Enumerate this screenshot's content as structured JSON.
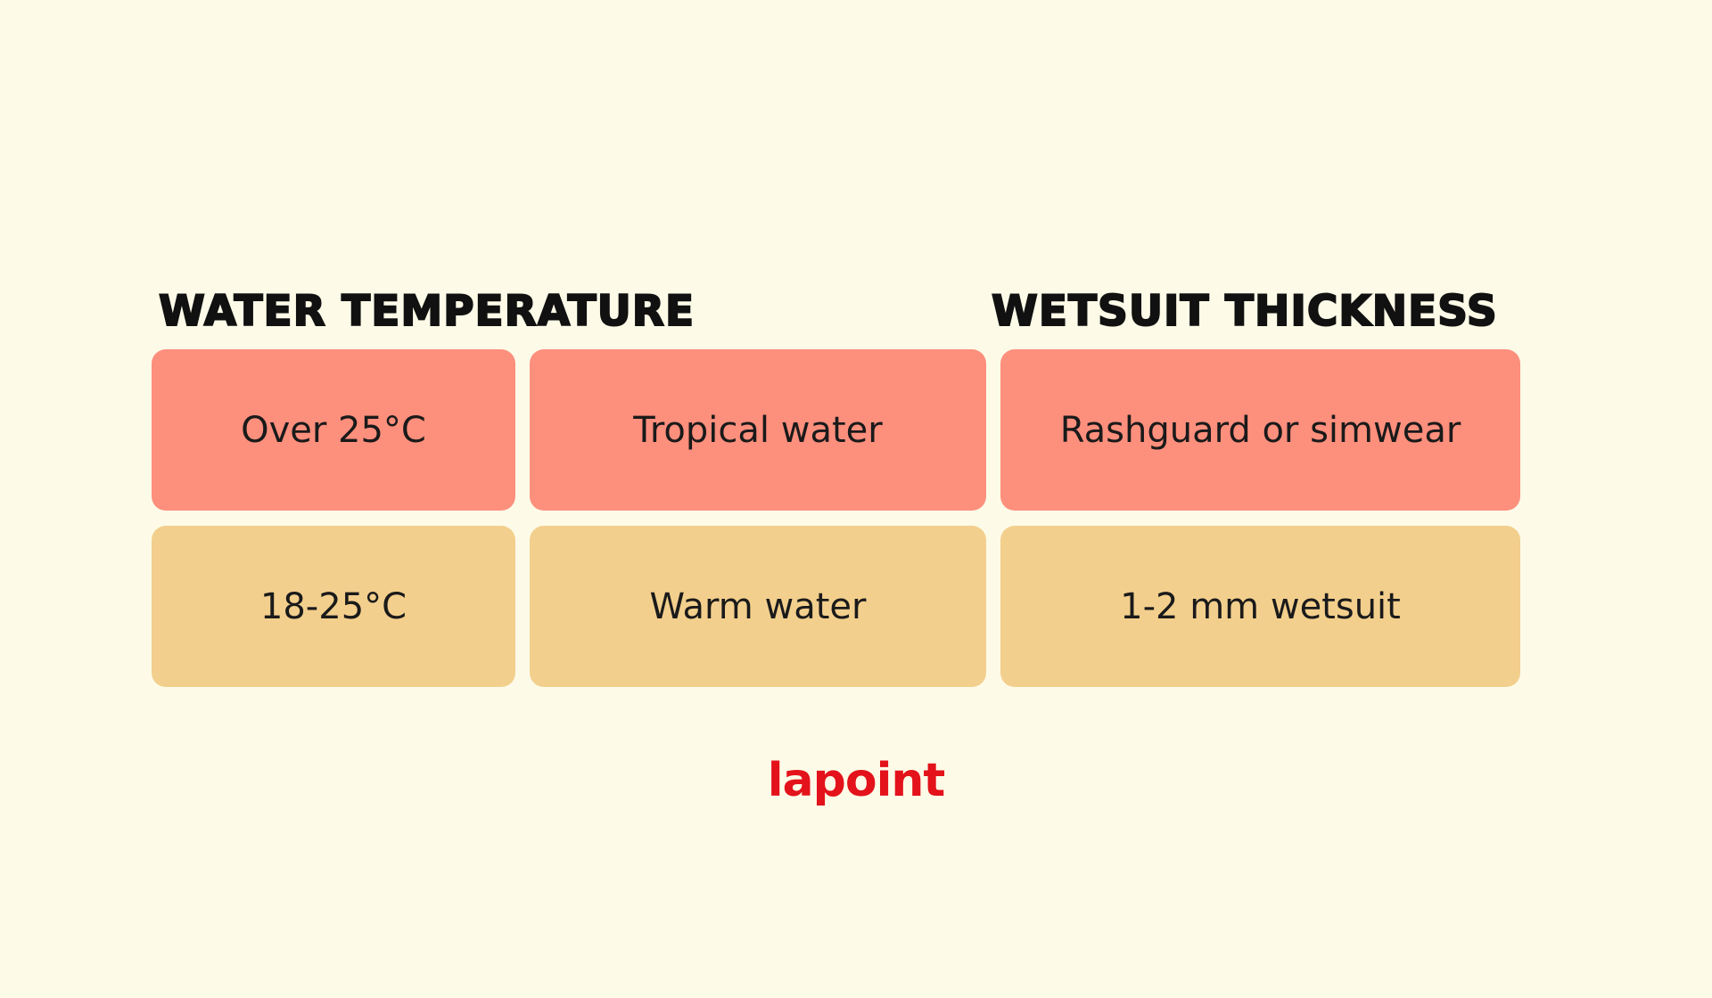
{
  "headers": [
    "WATER TEMPERATURE",
    "WETSUIT THICKNESS"
  ],
  "table": {
    "rows": [
      [
        "Over 25°C",
        "Tropical water",
        "Rashguard or simwear"
      ],
      [
        "18-25°C",
        "Warm water",
        "1-2 mm wetsuit"
      ]
    ]
  },
  "logo": "lapoint"
}
